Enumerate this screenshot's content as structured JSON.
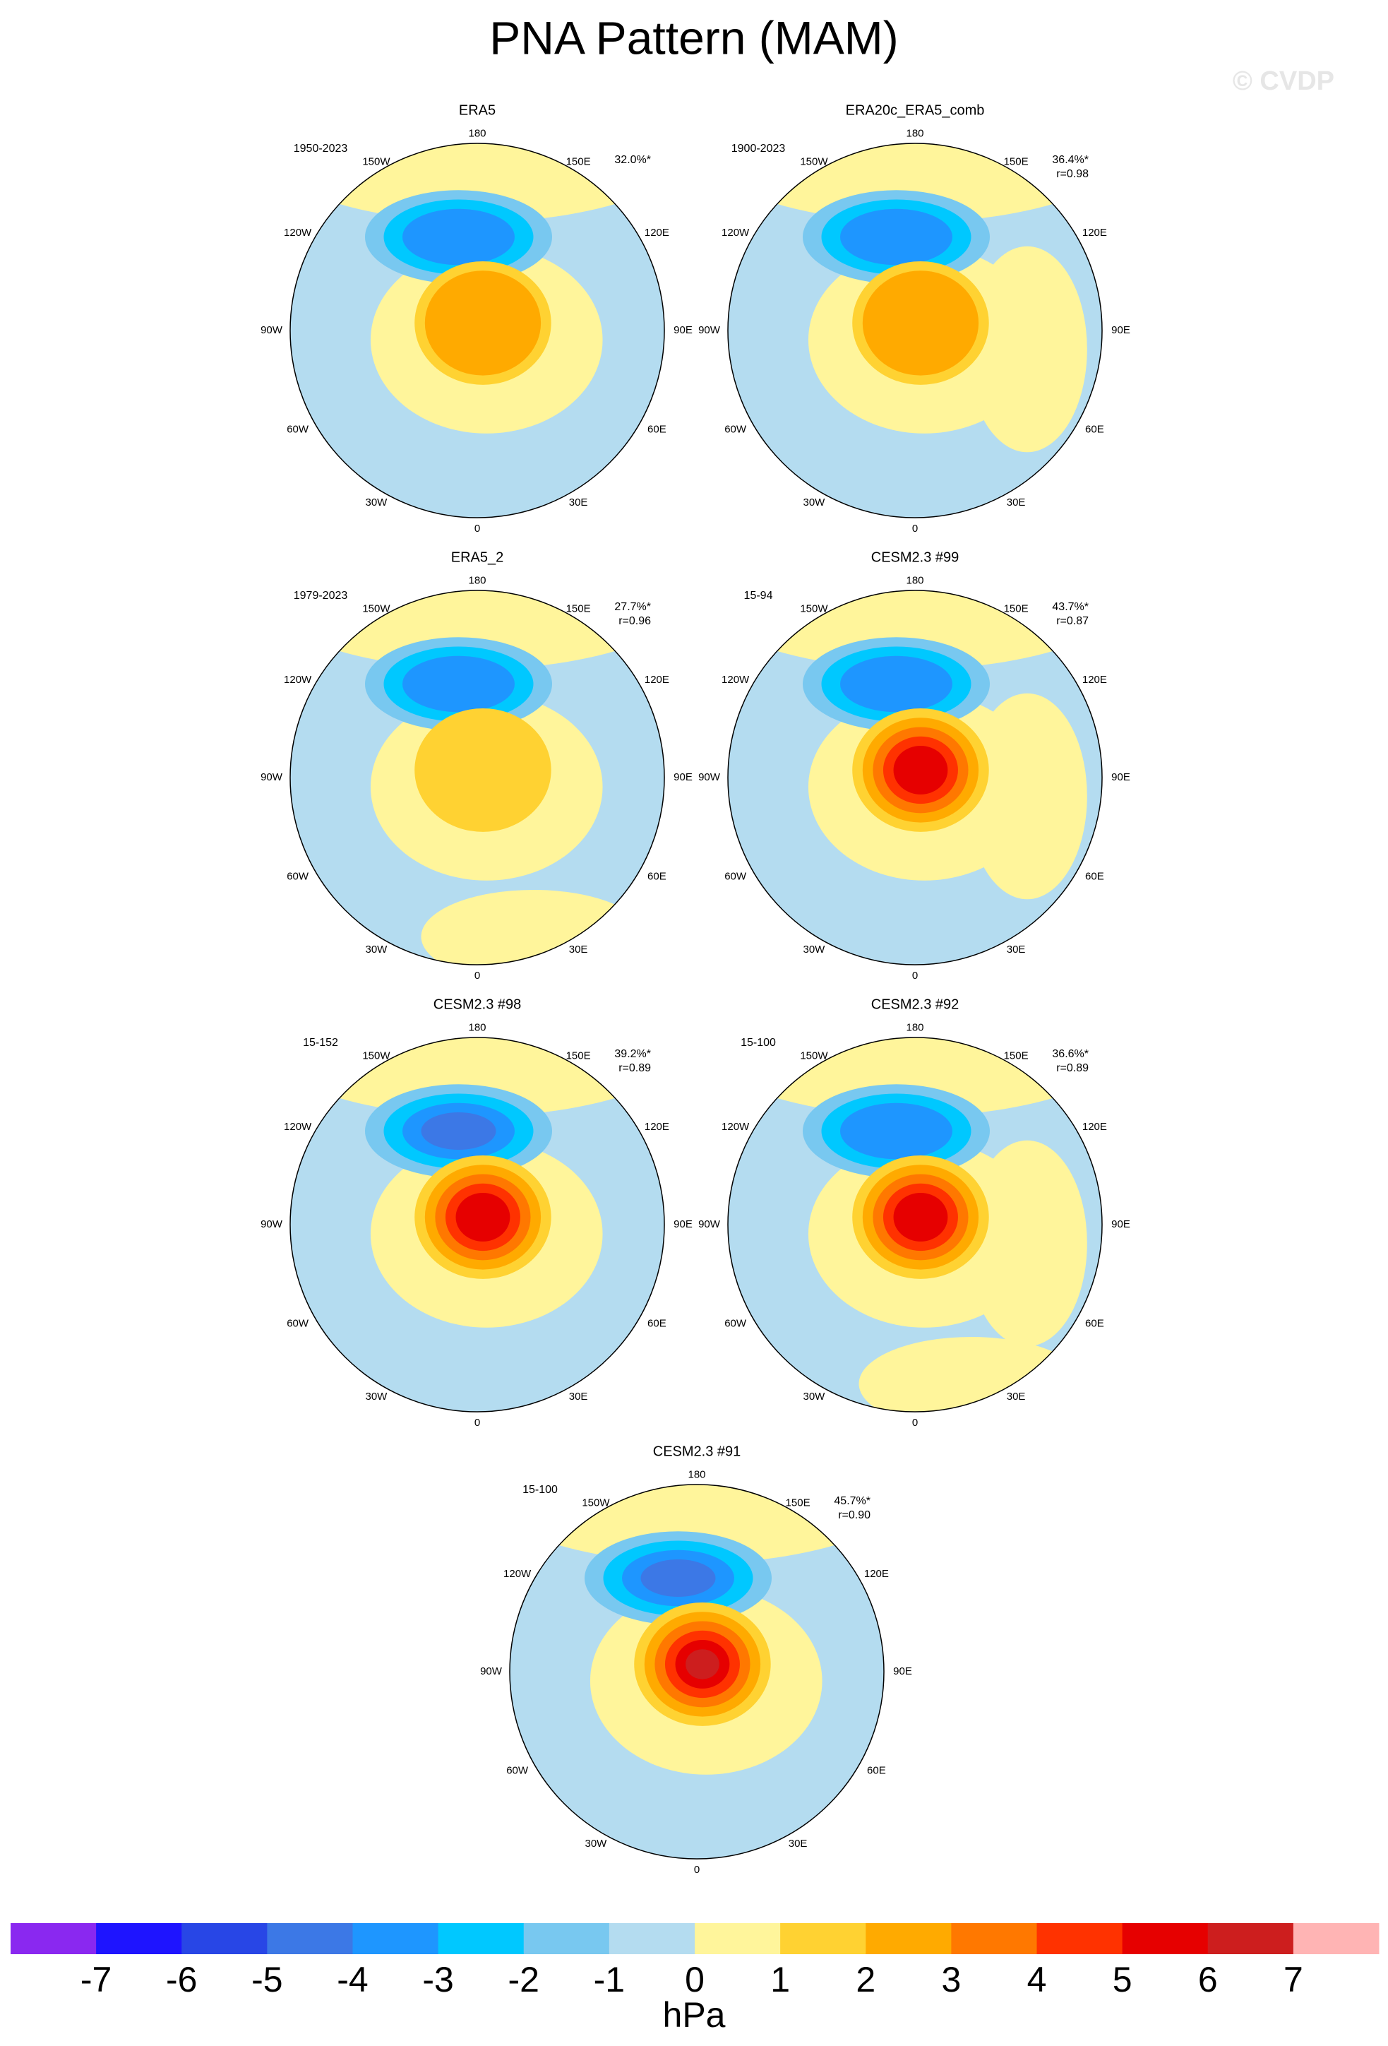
{
  "title": "PNA Pattern (MAM)",
  "watermark": "© CVDP",
  "lon_labels": [
    "180",
    "150E",
    "120E",
    "90E",
    "60E",
    "30E",
    "0",
    "30W",
    "60W",
    "90W",
    "120W",
    "150W"
  ],
  "panels": [
    {
      "title": "ERA5",
      "period": "1950-2023",
      "explained": "32.0%*"
    },
    {
      "title": "ERA20c_ERA5_comb",
      "period": "1900-2023",
      "explained": "36.4%*",
      "r": "r=0.98"
    },
    {
      "title": "ERA5_2",
      "period": "1979-2023",
      "explained": "27.7%*",
      "r": "r=0.96"
    },
    {
      "title": "CESM2.3 #99",
      "period": "15-94",
      "explained": "43.7%*",
      "r": "r=0.87"
    },
    {
      "title": "CESM2.3 #98",
      "period": "15-152",
      "explained": "39.2%*",
      "r": "r=0.89"
    },
    {
      "title": "CESM2.3 #92",
      "period": "15-100",
      "explained": "36.6%*",
      "r": "r=0.89"
    },
    {
      "title": "CESM2.3 #91",
      "period": "15-100",
      "explained": "45.7%*",
      "r": "r=0.90"
    }
  ],
  "colorbar": {
    "levels": [
      -7,
      -6,
      -5,
      -4,
      -3,
      -2,
      -1,
      0,
      1,
      2,
      3,
      4,
      5,
      6,
      7
    ],
    "colors": [
      "#8a28f0",
      "#1e14ff",
      "#2846e6",
      "#3c78e6",
      "#1e96ff",
      "#00c8ff",
      "#78c8f0",
      "#b4dcf0",
      "#fff59b",
      "#ffd232",
      "#ffaa00",
      "#ff7800",
      "#ff3200",
      "#e60000",
      "#cd1e1e",
      "#ffb4b4"
    ],
    "label": "hPa"
  }
}
